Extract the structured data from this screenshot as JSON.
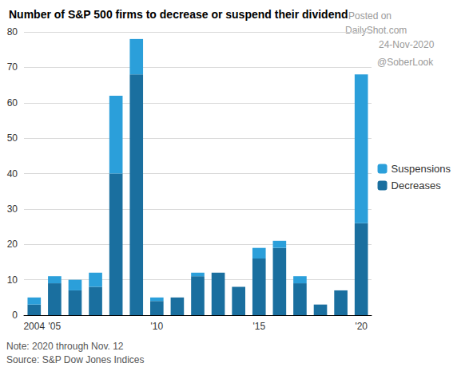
{
  "chart_data": {
    "type": "bar",
    "title": "Number of S&P 500 firms to decrease or suspend their dividend",
    "categories": [
      "2004",
      "'05",
      null,
      null,
      null,
      null,
      "'10",
      null,
      null,
      null,
      null,
      "'15",
      null,
      null,
      null,
      null,
      "'20"
    ],
    "series": [
      {
        "name": "Decreases",
        "color": "#1a6f9f",
        "values": [
          3,
          9,
          7,
          8,
          40,
          68,
          4,
          5,
          11,
          12,
          8,
          16,
          19,
          9,
          3,
          7,
          26
        ]
      },
      {
        "name": "Suspensions",
        "color": "#2b9fda",
        "values": [
          2,
          2,
          3,
          4,
          22,
          10,
          1,
          0,
          1,
          0,
          0,
          3,
          2,
          2,
          0,
          0,
          42
        ]
      }
    ],
    "ylim": [
      0,
      80
    ],
    "yticks": [
      0,
      10,
      20,
      30,
      40,
      50,
      60,
      70,
      80
    ],
    "grid": true,
    "stacked": true,
    "legend": "right",
    "notes": [
      "Note: 2020 through Nov. 12",
      "Source: S&P Dow Jones Indices"
    ],
    "annotations": [
      "Posted on",
      "DailyShot.com",
      "24-Nov-2020",
      "@SoberLook"
    ]
  }
}
